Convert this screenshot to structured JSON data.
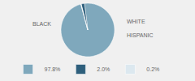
{
  "chart_data": {
    "type": "pie",
    "categories": [
      "BLACK",
      "WHITE",
      "HISPANIC"
    ],
    "values": [
      97.8,
      2.0,
      0.2
    ],
    "value_labels": [
      "97.8%",
      "2.0%",
      "0.2%"
    ],
    "colors": [
      "#7fa8bc",
      "#2e5f7c",
      "#dce8ef"
    ],
    "legend": "bottom"
  }
}
